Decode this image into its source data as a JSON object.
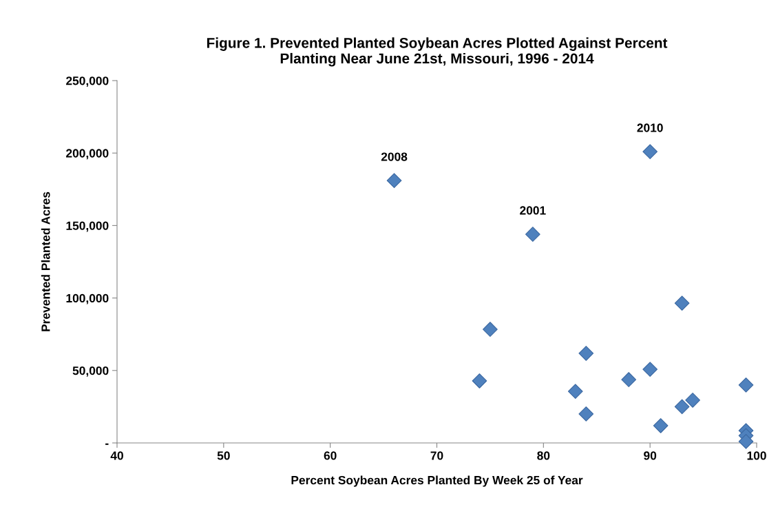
{
  "chart_data": {
    "type": "scatter",
    "title": "Figure 1. Prevented Planted Soybean Acres Plotted Against Percent\nPlanting Near June 21st, Missouri, 1996 - 2014",
    "xlabel": "Percent Soybean Acres Planted By Week 25 of Year",
    "ylabel": "Prevented Planted Acres",
    "x": [
      66,
      74,
      75,
      79,
      83,
      84,
      84,
      88,
      90,
      90,
      91,
      93,
      93,
      94,
      99,
      99,
      99,
      99
    ],
    "values": [
      181000,
      42800,
      78400,
      144000,
      35600,
      61800,
      20000,
      43700,
      50800,
      201000,
      11900,
      96400,
      25000,
      29500,
      40000,
      8500,
      5000,
      1000
    ],
    "color": "#4f81bd",
    "marker": "diamond",
    "grid": false,
    "legend": false,
    "xlim": [
      40,
      100
    ],
    "xticks": [
      40,
      50,
      60,
      70,
      80,
      90,
      100
    ],
    "ylim": [
      0,
      250000
    ],
    "yticks": [
      {
        "value": 0,
        "label": "-"
      },
      {
        "value": 50000,
        "label": "50,000"
      },
      {
        "value": 100000,
        "label": "100,000"
      },
      {
        "value": 150000,
        "label": "150,000"
      },
      {
        "value": 200000,
        "label": "200,000"
      },
      {
        "value": 250000,
        "label": "250,000"
      }
    ],
    "annotations": [
      {
        "text": "2008",
        "x": 66,
        "y": 181000
      },
      {
        "text": "2001",
        "x": 79,
        "y": 144000
      },
      {
        "text": "2010",
        "x": 90,
        "y": 201000
      }
    ]
  }
}
